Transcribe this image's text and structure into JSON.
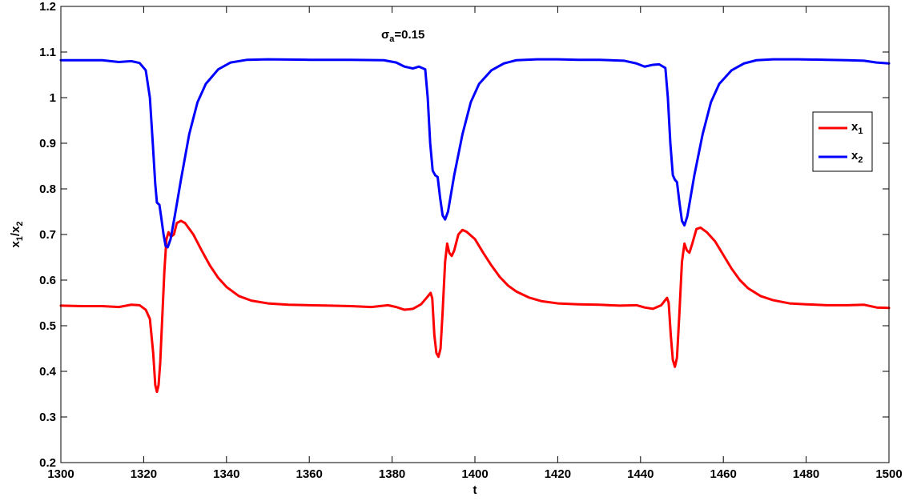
{
  "chart_data": {
    "type": "line",
    "annotation": {
      "main": "σ",
      "sub": "a",
      "tail": "=0.15"
    },
    "xlabel": "t",
    "ylabel": {
      "a": "x",
      "a_sub": "1",
      "sep": "/x",
      "b_sub": "2"
    },
    "xlim": [
      1300,
      1500
    ],
    "ylim": [
      0.2,
      1.2
    ],
    "xticks": [
      1300,
      1320,
      1340,
      1360,
      1380,
      1400,
      1420,
      1440,
      1460,
      1480,
      1500
    ],
    "yticks": [
      "0.2",
      "0.3",
      "0.4",
      "0.5",
      "0.6",
      "0.7",
      "0.8",
      "0.9",
      "1",
      "1.1",
      "1.2"
    ],
    "grid": false,
    "legend_position": "right",
    "series": [
      {
        "name": "x",
        "name_sub": "1",
        "color": "#ff0000",
        "points": [
          [
            1300,
            0.544
          ],
          [
            1305,
            0.543
          ],
          [
            1310,
            0.543
          ],
          [
            1314,
            0.541
          ],
          [
            1317,
            0.546
          ],
          [
            1319,
            0.545
          ],
          [
            1320.5,
            0.535
          ],
          [
            1321.5,
            0.515
          ],
          [
            1322.3,
            0.44
          ],
          [
            1322.8,
            0.37
          ],
          [
            1323.2,
            0.355
          ],
          [
            1323.6,
            0.37
          ],
          [
            1324,
            0.42
          ],
          [
            1324.5,
            0.52
          ],
          [
            1325,
            0.62
          ],
          [
            1325.5,
            0.69
          ],
          [
            1326,
            0.705
          ],
          [
            1326.6,
            0.695
          ],
          [
            1327.3,
            0.7
          ],
          [
            1328,
            0.725
          ],
          [
            1329,
            0.73
          ],
          [
            1330,
            0.725
          ],
          [
            1332,
            0.7
          ],
          [
            1334,
            0.665
          ],
          [
            1336,
            0.632
          ],
          [
            1338,
            0.605
          ],
          [
            1340,
            0.585
          ],
          [
            1343,
            0.565
          ],
          [
            1346,
            0.555
          ],
          [
            1350,
            0.549
          ],
          [
            1355,
            0.546
          ],
          [
            1360,
            0.545
          ],
          [
            1365,
            0.544
          ],
          [
            1370,
            0.543
          ],
          [
            1375,
            0.541
          ],
          [
            1379,
            0.545
          ],
          [
            1381,
            0.541
          ],
          [
            1383,
            0.535
          ],
          [
            1385,
            0.537
          ],
          [
            1387,
            0.547
          ],
          [
            1388.5,
            0.563
          ],
          [
            1389.3,
            0.572
          ],
          [
            1389.7,
            0.56
          ],
          [
            1390.2,
            0.48
          ],
          [
            1390.7,
            0.44
          ],
          [
            1391.2,
            0.432
          ],
          [
            1391.7,
            0.45
          ],
          [
            1392.2,
            0.53
          ],
          [
            1392.8,
            0.64
          ],
          [
            1393.3,
            0.68
          ],
          [
            1393.8,
            0.66
          ],
          [
            1394.4,
            0.653
          ],
          [
            1395,
            0.665
          ],
          [
            1396,
            0.7
          ],
          [
            1397,
            0.71
          ],
          [
            1398,
            0.706
          ],
          [
            1400,
            0.69
          ],
          [
            1402,
            0.66
          ],
          [
            1404,
            0.632
          ],
          [
            1406,
            0.607
          ],
          [
            1408,
            0.588
          ],
          [
            1410,
            0.575
          ],
          [
            1413,
            0.562
          ],
          [
            1416,
            0.554
          ],
          [
            1420,
            0.549
          ],
          [
            1425,
            0.547
          ],
          [
            1430,
            0.546
          ],
          [
            1435,
            0.544
          ],
          [
            1439,
            0.545
          ],
          [
            1441,
            0.54
          ],
          [
            1443,
            0.537
          ],
          [
            1445,
            0.545
          ],
          [
            1446.4,
            0.561
          ],
          [
            1446.8,
            0.55
          ],
          [
            1447.3,
            0.48
          ],
          [
            1447.8,
            0.425
          ],
          [
            1448.3,
            0.41
          ],
          [
            1448.8,
            0.43
          ],
          [
            1449.4,
            0.53
          ],
          [
            1450,
            0.64
          ],
          [
            1450.6,
            0.68
          ],
          [
            1451.2,
            0.665
          ],
          [
            1451.8,
            0.66
          ],
          [
            1452.5,
            0.68
          ],
          [
            1453.5,
            0.712
          ],
          [
            1454.5,
            0.715
          ],
          [
            1456,
            0.705
          ],
          [
            1458,
            0.685
          ],
          [
            1460,
            0.655
          ],
          [
            1462,
            0.625
          ],
          [
            1464,
            0.6
          ],
          [
            1466,
            0.582
          ],
          [
            1469,
            0.565
          ],
          [
            1472,
            0.556
          ],
          [
            1476,
            0.549
          ],
          [
            1480,
            0.547
          ],
          [
            1485,
            0.545
          ],
          [
            1490,
            0.545
          ],
          [
            1494,
            0.546
          ],
          [
            1497,
            0.54
          ],
          [
            1500,
            0.539
          ]
        ]
      },
      {
        "name": "x",
        "name_sub": "2",
        "color": "#0000ff",
        "points": [
          [
            1300,
            1.082
          ],
          [
            1305,
            1.082
          ],
          [
            1310,
            1.082
          ],
          [
            1314,
            1.078
          ],
          [
            1317,
            1.08
          ],
          [
            1319,
            1.076
          ],
          [
            1320.5,
            1.06
          ],
          [
            1321.5,
            1.0
          ],
          [
            1322.2,
            0.9
          ],
          [
            1322.8,
            0.81
          ],
          [
            1323.2,
            0.77
          ],
          [
            1323.8,
            0.765
          ],
          [
            1324.2,
            0.74
          ],
          [
            1324.8,
            0.7
          ],
          [
            1325.3,
            0.675
          ],
          [
            1325.8,
            0.672
          ],
          [
            1326.5,
            0.69
          ],
          [
            1327.5,
            0.74
          ],
          [
            1329,
            0.82
          ],
          [
            1331,
            0.92
          ],
          [
            1333,
            0.99
          ],
          [
            1335,
            1.03
          ],
          [
            1338,
            1.062
          ],
          [
            1341,
            1.077
          ],
          [
            1345,
            1.083
          ],
          [
            1350,
            1.084
          ],
          [
            1360,
            1.083
          ],
          [
            1370,
            1.083
          ],
          [
            1378,
            1.082
          ],
          [
            1381,
            1.077
          ],
          [
            1383,
            1.068
          ],
          [
            1385,
            1.064
          ],
          [
            1386.5,
            1.068
          ],
          [
            1388,
            1.062
          ],
          [
            1388.6,
            1.0
          ],
          [
            1389.2,
            0.9
          ],
          [
            1389.8,
            0.84
          ],
          [
            1390.4,
            0.83
          ],
          [
            1391,
            0.826
          ],
          [
            1391.6,
            0.78
          ],
          [
            1392.2,
            0.742
          ],
          [
            1392.8,
            0.733
          ],
          [
            1393.5,
            0.75
          ],
          [
            1395,
            0.83
          ],
          [
            1397,
            0.92
          ],
          [
            1399,
            0.99
          ],
          [
            1401,
            1.03
          ],
          [
            1404,
            1.06
          ],
          [
            1407,
            1.075
          ],
          [
            1410,
            1.082
          ],
          [
            1415,
            1.084
          ],
          [
            1420,
            1.084
          ],
          [
            1425,
            1.083
          ],
          [
            1430,
            1.083
          ],
          [
            1436,
            1.081
          ],
          [
            1439,
            1.075
          ],
          [
            1441,
            1.068
          ],
          [
            1443,
            1.072
          ],
          [
            1444.5,
            1.073
          ],
          [
            1446,
            1.065
          ],
          [
            1446.6,
            1.0
          ],
          [
            1447.2,
            0.9
          ],
          [
            1447.8,
            0.83
          ],
          [
            1448.3,
            0.82
          ],
          [
            1448.8,
            0.815
          ],
          [
            1449.4,
            0.77
          ],
          [
            1450,
            0.73
          ],
          [
            1450.6,
            0.72
          ],
          [
            1451.3,
            0.74
          ],
          [
            1453,
            0.83
          ],
          [
            1455,
            0.92
          ],
          [
            1457,
            0.99
          ],
          [
            1459,
            1.03
          ],
          [
            1462,
            1.06
          ],
          [
            1465,
            1.075
          ],
          [
            1468,
            1.082
          ],
          [
            1472,
            1.084
          ],
          [
            1478,
            1.084
          ],
          [
            1485,
            1.083
          ],
          [
            1490,
            1.082
          ],
          [
            1494,
            1.081
          ],
          [
            1497,
            1.077
          ],
          [
            1500,
            1.075
          ]
        ]
      }
    ]
  }
}
